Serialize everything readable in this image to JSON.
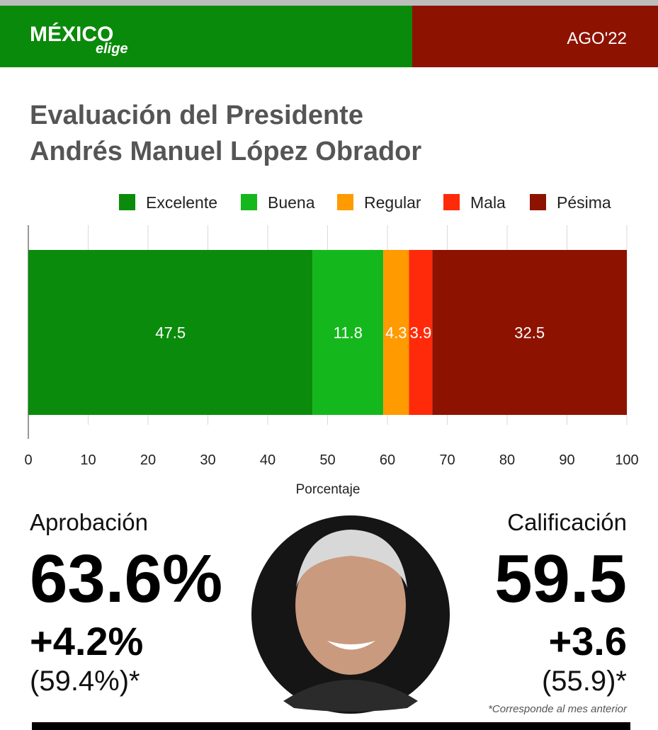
{
  "header": {
    "logo": "MÉXICO",
    "logo_sub": "elige",
    "date": "AGO'22"
  },
  "chart_data": {
    "type": "bar",
    "orientation": "horizontal",
    "stacked": true,
    "title": [
      "Evaluación del Presidente",
      "Andrés Manuel López Obrador"
    ],
    "categories": [
      null
    ],
    "series": [
      {
        "name": "Excelente",
        "color": "#0b8b0b",
        "values": [
          47.5
        ]
      },
      {
        "name": "Buena",
        "color": "#14b81c",
        "values": [
          11.8
        ]
      },
      {
        "name": "Regular",
        "color": "#ff9a00",
        "values": [
          4.3
        ]
      },
      {
        "name": "Mala",
        "color": "#ff2a0a",
        "values": [
          3.9
        ]
      },
      {
        "name": "Pésima",
        "color": "#8e1200",
        "values": [
          32.5
        ]
      }
    ],
    "xlim": [
      0,
      100
    ],
    "xticks": [
      0,
      10,
      20,
      30,
      40,
      50,
      60,
      70,
      80,
      90,
      100
    ],
    "xlabel": "Porcentaje",
    "grid": true,
    "legend": "top"
  },
  "summary": {
    "approval": {
      "label": "Aprobación",
      "value": "63.6%",
      "change": "+4.2%",
      "previous": "(59.4%)*"
    },
    "rating": {
      "label": "Calificación",
      "value": "59.5",
      "change": "+3.6",
      "previous": "(55.9)*"
    },
    "footnote": "*Corresponde al mes anterior"
  }
}
